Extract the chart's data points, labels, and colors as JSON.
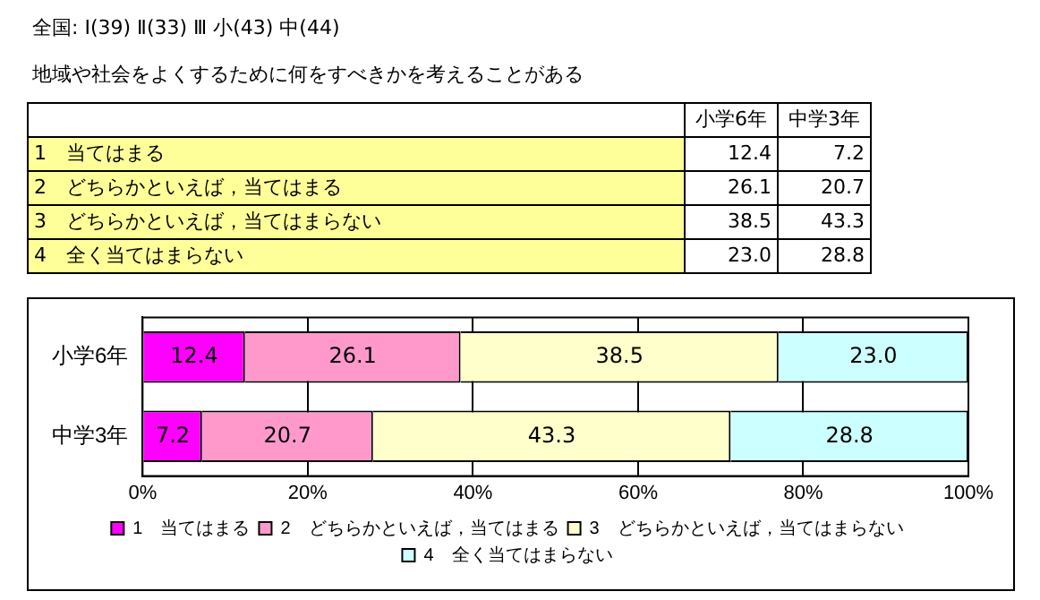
{
  "chart_data": {
    "type": "bar",
    "orientation": "horizontal",
    "stacked": true,
    "title": "全国: Ⅰ(39)  Ⅱ(33)  Ⅲ 小(43)  中(44)",
    "subtitle": "地域や社会をよくするために何をすべきかを考えることがある",
    "categories": [
      "小学6年",
      "中学3年"
    ],
    "series": [
      {
        "name": "1　当てはまる",
        "color": "#ff00ff",
        "values": [
          12.4,
          7.2
        ],
        "value_labels": [
          "12.4",
          "7.2"
        ]
      },
      {
        "name": "2　どちらかといえば，当てはまる",
        "color": "#ff99cc",
        "values": [
          26.1,
          20.7
        ],
        "value_labels": [
          "26.1",
          "20.7"
        ]
      },
      {
        "name": "3　どちらかといえば，当てはまらない",
        "color": "#ffffcc",
        "values": [
          38.5,
          43.3
        ],
        "value_labels": [
          "38.5",
          "43.3"
        ]
      },
      {
        "name": "4　全く当てはまらない",
        "color": "#ccffff",
        "values": [
          23.0,
          28.8
        ],
        "value_labels": [
          "23.0",
          "28.8"
        ]
      }
    ],
    "xlim": [
      0,
      100
    ],
    "xticks": [
      {
        "value": 0,
        "label": "0%"
      },
      {
        "value": 20,
        "label": "20%"
      },
      {
        "value": 40,
        "label": "40%"
      },
      {
        "value": 60,
        "label": "60%"
      },
      {
        "value": 80,
        "label": "80%"
      },
      {
        "value": 100,
        "label": "100%"
      }
    ],
    "grid": "x",
    "legend": "bottom"
  }
}
